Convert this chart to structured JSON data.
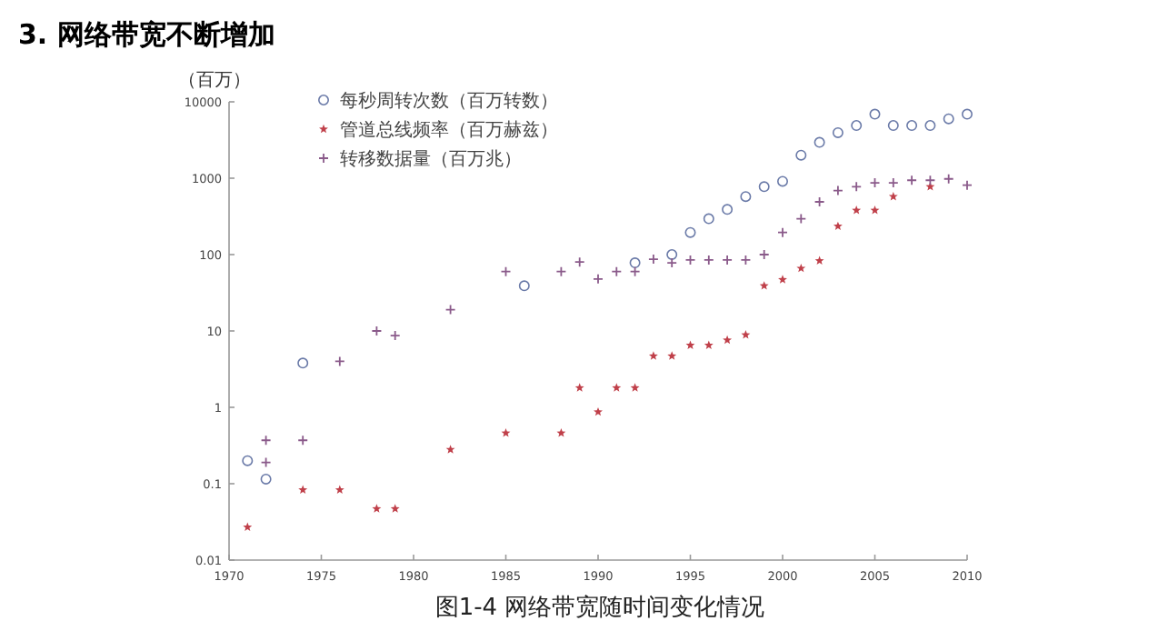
{
  "chart_data": {
    "type": "scatter",
    "title": "3. 网络带宽不断增加",
    "ylabel": "（百万）",
    "annotations": [
      "图1-4 网络带宽随时间变化情况"
    ],
    "log": "y",
    "xlim": [
      1970,
      2010
    ],
    "xticks": [
      1970,
      1975,
      1980,
      1985,
      1990,
      1995,
      2000,
      2005,
      2010
    ],
    "ylim": [
      0.01,
      10000
    ],
    "yticks": [
      0.01,
      0.1,
      1,
      10,
      100,
      1000,
      10000
    ],
    "legend": "top left",
    "series": [
      {
        "name": "每秒周转次数（百万转数）",
        "color": "#6a7aa8",
        "marker": "circle",
        "x": [
          1971,
          1972,
          1974,
          1986,
          1992,
          1994,
          1995,
          1996,
          1997,
          1998,
          1999,
          2000,
          2001,
          2002,
          2003,
          2004,
          2005,
          2006,
          2007,
          2008,
          2009,
          2010
        ],
        "values": [
          0.2,
          0.115,
          3.8,
          39,
          78,
          100,
          195,
          295,
          390,
          575,
          775,
          910,
          2000,
          2950,
          3950,
          4900,
          6900,
          4900,
          4900,
          4900,
          6000,
          6900
        ]
      },
      {
        "name": "管道总线频率（百万赫兹）",
        "color": "#c0404a",
        "marker": "star",
        "x": [
          1971,
          1974,
          1976,
          1978,
          1979,
          1982,
          1985,
          1988,
          1989,
          1990,
          1991,
          1992,
          1993,
          1994,
          1995,
          1996,
          1997,
          1998,
          1999,
          2000,
          2001,
          2002,
          2003,
          2004,
          2005,
          2006,
          2008
        ],
        "values": [
          0.027,
          0.083,
          0.083,
          0.047,
          0.047,
          0.28,
          0.46,
          0.46,
          1.8,
          0.87,
          1.8,
          1.8,
          4.7,
          4.7,
          6.5,
          6.5,
          7.6,
          8.9,
          39,
          47,
          66,
          83,
          235,
          380,
          380,
          575,
          775
        ]
      },
      {
        "name": "转移数据量（百万兆）",
        "color": "#8a5a8a",
        "marker": "cross",
        "x": [
          1972,
          1972,
          1974,
          1976,
          1978,
          1979,
          1982,
          1985,
          1988,
          1989,
          1990,
          1991,
          1992,
          1993,
          1994,
          1995,
          1996,
          1997,
          1998,
          1999,
          2000,
          2001,
          2002,
          2003,
          2004,
          2005,
          2006,
          2007,
          2008,
          2009,
          2010
        ],
        "values": [
          0.37,
          0.19,
          0.37,
          4,
          10,
          8.7,
          19,
          60,
          60,
          80,
          48,
          60,
          60,
          87,
          78,
          85,
          85,
          85,
          85,
          100,
          195,
          295,
          490,
          690,
          775,
          870,
          870,
          940,
          940,
          980,
          810
        ]
      }
    ]
  }
}
